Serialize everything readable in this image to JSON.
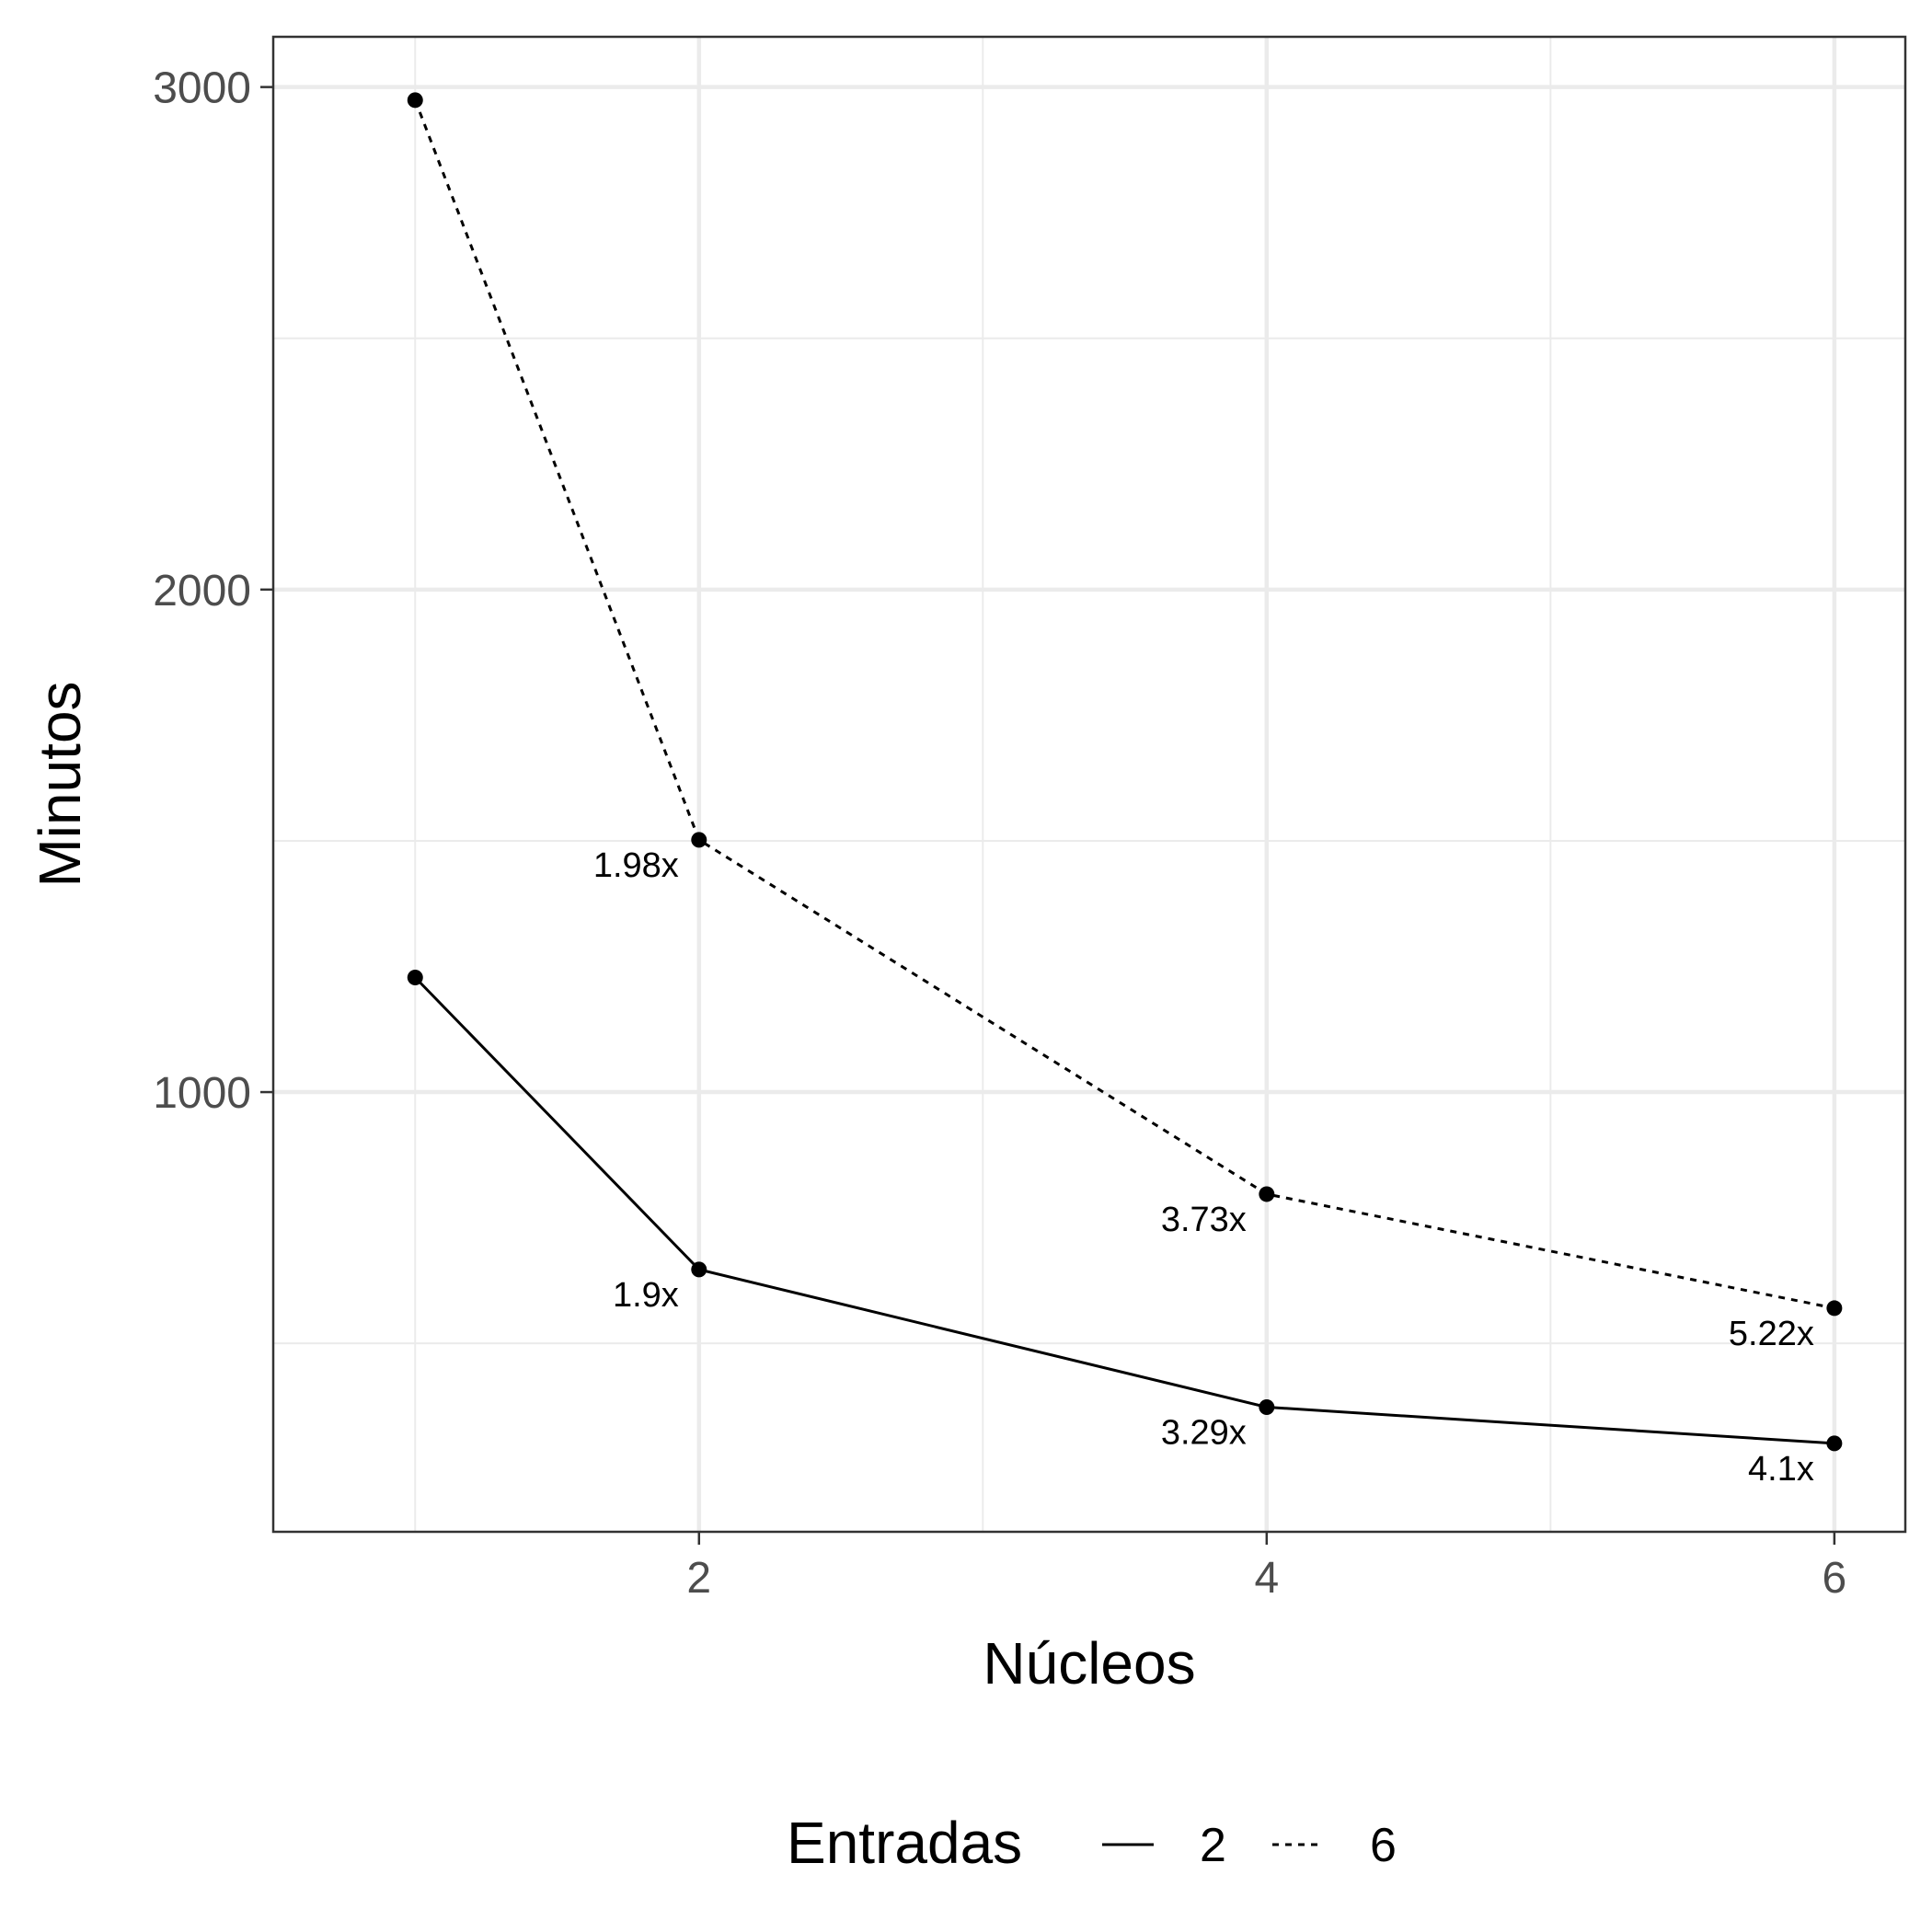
{
  "chart_data": {
    "type": "line",
    "xlabel": "Núcleos",
    "ylabel": "Minutos",
    "xlim": [
      0.5,
      6.25
    ],
    "ylim": [
      125,
      3100
    ],
    "x_ticks": [
      2,
      4,
      6
    ],
    "y_ticks": [
      1000,
      2000,
      3000
    ],
    "x_minor_grid": [
      1,
      3,
      5
    ],
    "y_minor_grid": [
      500,
      1500,
      2500
    ],
    "grid": true,
    "legend": {
      "title": "Entradas",
      "position": "bottom",
      "entries": [
        {
          "label": "2",
          "linetype": "solid"
        },
        {
          "label": "6",
          "linetype": "dotted"
        }
      ]
    },
    "series": [
      {
        "name": "2",
        "linetype": "solid",
        "x": [
          1,
          2,
          4,
          6
        ],
        "y": [
          1228,
          647,
          373,
          301
        ],
        "labels": [
          "",
          "1.9x",
          "3.29x",
          "4.1x"
        ]
      },
      {
        "name": "6",
        "linetype": "dotted",
        "x": [
          1,
          2,
          4,
          6
        ],
        "y": [
          2974,
          1502,
          797,
          570
        ],
        "labels": [
          "",
          "1.98x",
          "3.73x",
          "5.22x"
        ]
      }
    ],
    "colors": {
      "line": "#000000",
      "grid": "#ebebeb",
      "panel_border": "#333333",
      "tick_text": "#4d4d4d"
    }
  }
}
